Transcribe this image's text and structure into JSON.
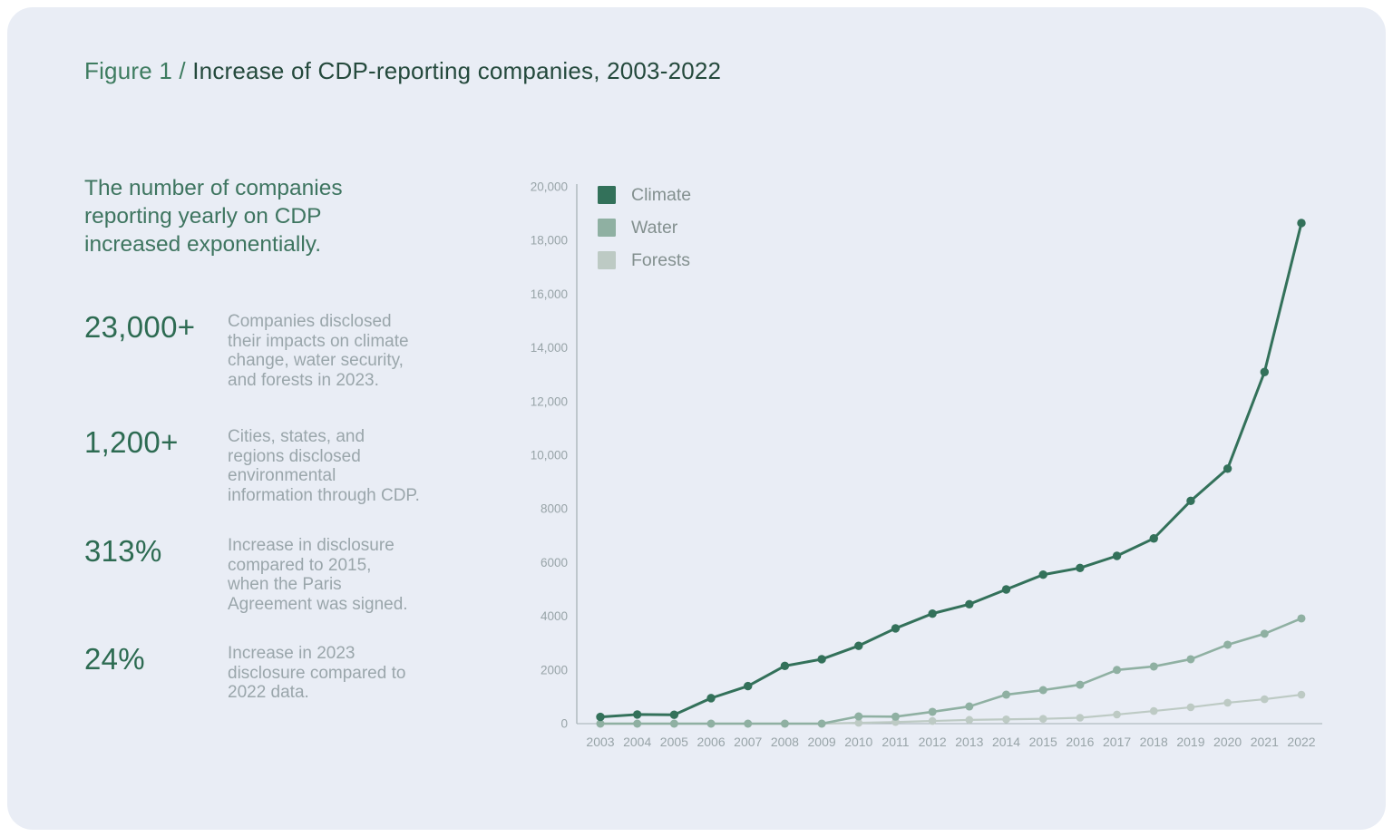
{
  "card": {
    "background": "#e9edf5"
  },
  "figure": {
    "label": "Figure 1 /",
    "title": " Increase of CDP-reporting companies, 2003-2022"
  },
  "intro": "The number of companies\nreporting yearly on CDP\nincreased exponentially.",
  "stats": [
    {
      "value": "23,000+",
      "description": "Companies disclosed\ntheir impacts on climate\nchange, water security,\nand forests in 2023."
    },
    {
      "value": "1,200+",
      "description": "Cities, states, and\nregions disclosed\nenvironmental\ninformation through CDP."
    },
    {
      "value": "313%",
      "description": "Increase in disclosure\ncompared to 2015,\nwhen the Paris\nAgreement was signed."
    },
    {
      "value": "24%",
      "description": "Increase in 2023\ndisclosure compared to\n2022 data."
    }
  ],
  "colors": {
    "climate": "#33715a",
    "water": "#8fb0a2",
    "forests": "#bdcac4",
    "axis": "#a3aeb2",
    "tick_text": "#98a4a8",
    "legend_text": "#83908f"
  },
  "chart_data": {
    "type": "line",
    "title": "",
    "xlabel": "",
    "ylabel": "",
    "x": [
      "2003",
      "2004",
      "2005",
      "2006",
      "2007",
      "2008",
      "2009",
      "2010",
      "2011",
      "2012",
      "2013",
      "2014",
      "2015",
      "2016",
      "2017",
      "2018",
      "2019",
      "2020",
      "2021",
      "2022"
    ],
    "series": [
      {
        "name": "Climate",
        "color": "#33715a",
        "values": [
          250,
          340,
          330,
          950,
          1400,
          2150,
          2400,
          2900,
          3550,
          4100,
          4450,
          5000,
          5550,
          5800,
          6250,
          6900,
          8300,
          9500,
          13100,
          18650
        ]
      },
      {
        "name": "Water",
        "color": "#8fb0a2",
        "values": [
          0,
          0,
          0,
          0,
          0,
          0,
          0,
          270,
          260,
          440,
          640,
          1080,
          1250,
          1450,
          2000,
          2130,
          2400,
          2940,
          3350,
          3920
        ]
      },
      {
        "name": "Forests",
        "color": "#bdcac4",
        "values": [
          0,
          0,
          0,
          0,
          0,
          0,
          0,
          30,
          60,
          100,
          140,
          160,
          180,
          220,
          340,
          470,
          610,
          780,
          910,
          1080
        ]
      }
    ],
    "ylim": [
      0,
      20000
    ],
    "ytick_step": 2000,
    "ytick_labels": [
      "0",
      "2000",
      "4000",
      "6000",
      "8000",
      "10,000",
      "12,000",
      "14,000",
      "16,000",
      "18,000",
      "20,000"
    ],
    "grid": false,
    "legend_position": "top-left"
  }
}
